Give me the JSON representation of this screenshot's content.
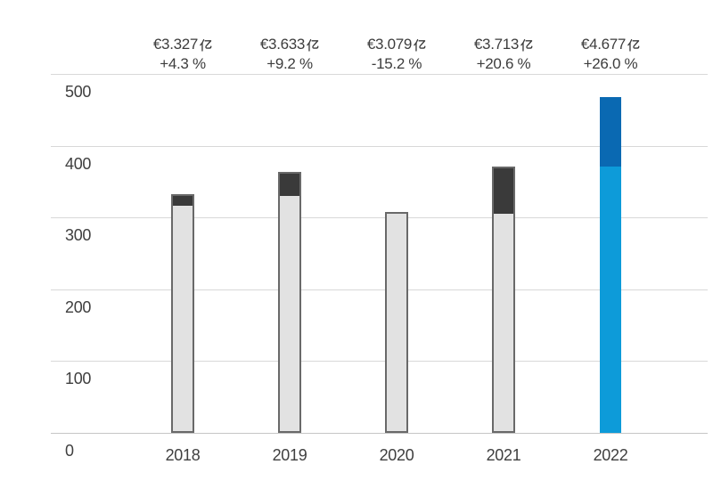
{
  "chart_data": {
    "type": "bar",
    "title": "",
    "xlabel": "",
    "ylabel": "",
    "categories": [
      "2018",
      "2019",
      "2020",
      "2021",
      "2022"
    ],
    "totals": [
      332.7,
      363.3,
      307.9,
      371.3,
      467.7
    ],
    "series": [
      {
        "name": "previous-year-base",
        "values": [
          319.0,
          332.7,
          307.9,
          307.9,
          371.3
        ]
      },
      {
        "name": "year-over-year-increase",
        "values": [
          13.7,
          30.6,
          0,
          63.4,
          96.4
        ]
      }
    ],
    "bars": [
      {
        "year": "2018",
        "value": 332.7,
        "base": 319.0,
        "increase": 13.7,
        "value_label": "€3.327亿",
        "change_label": "+4.3 %",
        "change_pct": 4.3,
        "style": "gray"
      },
      {
        "year": "2019",
        "value": 363.3,
        "base": 332.7,
        "increase": 30.6,
        "value_label": "€3.633亿",
        "change_label": "+9.2 %",
        "change_pct": 9.2,
        "style": "gray"
      },
      {
        "year": "2020",
        "value": 307.9,
        "base": 307.9,
        "increase": 0,
        "value_label": "€3.079亿",
        "change_label": "-15.2 %",
        "change_pct": -15.2,
        "style": "gray"
      },
      {
        "year": "2021",
        "value": 371.3,
        "base": 307.9,
        "increase": 63.4,
        "value_label": "€3.713亿",
        "change_label": "+20.6 %",
        "change_pct": 20.6,
        "style": "gray"
      },
      {
        "year": "2022",
        "value": 467.7,
        "base": 371.3,
        "increase": 96.4,
        "value_label": "€4.677亿",
        "change_label": "+26.0 %",
        "change_pct": 26.0,
        "style": "blue"
      }
    ],
    "y_ticks": [
      0,
      100,
      200,
      300,
      400,
      500
    ],
    "ylim": [
      0,
      500
    ],
    "grid": true,
    "legend": "none"
  },
  "colors": {
    "background": "#ffffff",
    "gridline": "#d8d8d8",
    "baseline": "#c6c6c6",
    "bar_fill": "#e2e2e2",
    "bar_border": "#696969",
    "bar_cap": "#3a3a3a",
    "blue_base": "#0d9bd9",
    "blue_top": "#0a69b2",
    "text": "#3d3d3d"
  }
}
